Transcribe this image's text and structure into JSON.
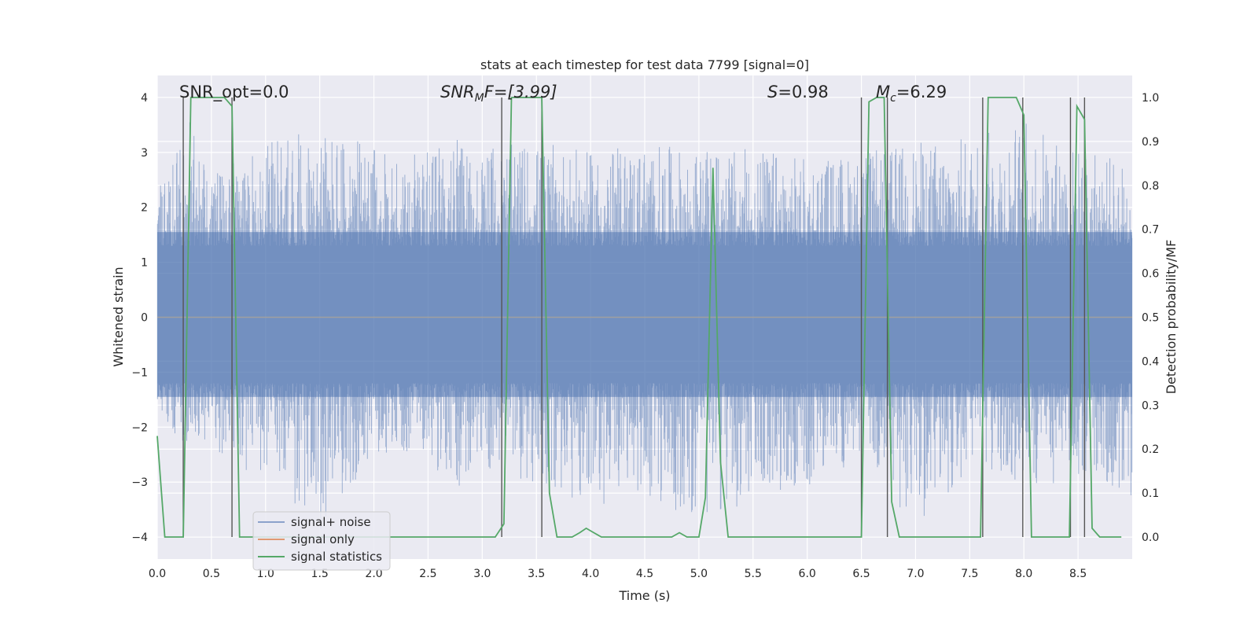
{
  "chart_data": {
    "type": "line",
    "title": "stats at each timestep for test data 7799 [signal=0]",
    "xlabel": "Time (s)",
    "ylabel": "Whitened strain",
    "y2label": "Detection probability/MF",
    "xlim": [
      0.0,
      9.0
    ],
    "ylim": [
      -4.4,
      4.4
    ],
    "y2lim": [
      -0.05,
      1.05
    ],
    "xticks": [
      0.0,
      0.5,
      1.0,
      1.5,
      2.0,
      2.5,
      3.0,
      3.5,
      4.0,
      4.5,
      5.0,
      5.5,
      6.0,
      6.5,
      7.0,
      7.5,
      8.0,
      8.5
    ],
    "xtick_labels": [
      "0.0",
      "0.5",
      "1.0",
      "1.5",
      "2.0",
      "2.5",
      "3.0",
      "3.5",
      "4.0",
      "4.5",
      "5.0",
      "5.5",
      "6.0",
      "6.5",
      "7.0",
      "7.5",
      "8.0",
      "8.5"
    ],
    "yticks": [
      -4,
      -3,
      -2,
      -1,
      0,
      1,
      2,
      3,
      4
    ],
    "ytick_labels": [
      "−4",
      "−3",
      "−2",
      "−1",
      "0",
      "1",
      "2",
      "3",
      "4"
    ],
    "y2ticks": [
      0.0,
      0.1,
      0.2,
      0.3,
      0.4,
      0.5,
      0.6,
      0.7,
      0.8,
      0.9,
      1.0
    ],
    "y2tick_labels": [
      "0.0",
      "0.1",
      "0.2",
      "0.3",
      "0.4",
      "0.5",
      "0.6",
      "0.7",
      "0.8",
      "0.9",
      "1.0"
    ],
    "annotations": {
      "snr_opt": "SNR_opt=0.0",
      "snr_mf_main": "SNR",
      "snr_mf_sub": "M",
      "snr_mf_rest": "F=[3.99]",
      "s_italic": "S",
      "s_value": "=0.98",
      "mc_main": "M",
      "mc_sub": "c",
      "mc_value": "=6.29"
    },
    "legend": {
      "placement": "lower-left",
      "entries": [
        "signal+ noise",
        "signal only",
        "signal statistics"
      ]
    },
    "series": [
      {
        "name": "signal+ noise",
        "color": "#4c72b0",
        "axis": "left",
        "style": "dense noise trace",
        "envelope": [
          {
            "x": 0.0,
            "low": -1.8,
            "high": 2.4
          },
          {
            "x": 0.25,
            "low": -2.3,
            "high": 3.8
          },
          {
            "x": 0.5,
            "low": -2.4,
            "high": 2.6
          },
          {
            "x": 1.0,
            "low": -3.0,
            "high": 3.2
          },
          {
            "x": 1.5,
            "low": -3.9,
            "high": 3.5
          },
          {
            "x": 2.0,
            "low": -2.5,
            "high": 3.1
          },
          {
            "x": 2.5,
            "low": -2.4,
            "high": 3.0
          },
          {
            "x": 2.7,
            "low": -3.4,
            "high": 3.3
          },
          {
            "x": 3.0,
            "low": -2.7,
            "high": 3.1
          },
          {
            "x": 3.5,
            "low": -3.1,
            "high": 3.2
          },
          {
            "x": 4.0,
            "low": -3.5,
            "high": 3.0
          },
          {
            "x": 4.5,
            "low": -3.3,
            "high": 3.2
          },
          {
            "x": 5.0,
            "low": -3.7,
            "high": 3.0
          },
          {
            "x": 5.5,
            "low": -3.4,
            "high": 3.1
          },
          {
            "x": 6.0,
            "low": -3.1,
            "high": 2.9
          },
          {
            "x": 6.5,
            "low": -2.6,
            "high": 3.0
          },
          {
            "x": 7.0,
            "low": -3.9,
            "high": 3.2
          },
          {
            "x": 7.5,
            "low": -2.8,
            "high": 3.3
          },
          {
            "x": 8.0,
            "low": -3.2,
            "high": 3.6
          },
          {
            "x": 8.5,
            "low": -2.9,
            "high": 3.1
          },
          {
            "x": 9.0,
            "low": -3.3,
            "high": 2.8
          }
        ]
      },
      {
        "name": "signal only",
        "color": "#dd8452",
        "axis": "left",
        "x": [
          0.0,
          9.0
        ],
        "y": [
          0.0,
          0.0
        ]
      },
      {
        "name": "signal statistics",
        "color": "#55a868",
        "axis": "right",
        "x": [
          0.0,
          0.07,
          0.24,
          0.31,
          0.62,
          0.69,
          0.76,
          0.83,
          3.12,
          3.2,
          3.27,
          3.55,
          3.62,
          3.69,
          3.76,
          3.83,
          3.9,
          3.96,
          4.03,
          4.1,
          4.17,
          4.75,
          4.82,
          4.89,
          5.0,
          5.06,
          5.13,
          5.2,
          5.27,
          6.5,
          6.57,
          6.64,
          6.71,
          6.78,
          6.85,
          7.6,
          7.67,
          7.74,
          7.93,
          8.0,
          8.07,
          8.14,
          8.42,
          8.49,
          8.56,
          8.63,
          8.7,
          8.9
        ],
        "y": [
          0.23,
          0.0,
          0.0,
          1.0,
          1.0,
          0.98,
          0.0,
          0.0,
          0.0,
          0.03,
          1.0,
          1.0,
          0.1,
          0.0,
          0.0,
          0.0,
          0.01,
          0.02,
          0.01,
          0.0,
          0.0,
          0.0,
          0.01,
          0.0,
          0.0,
          0.09,
          0.84,
          0.17,
          0.0,
          0.0,
          0.99,
          1.0,
          1.0,
          0.08,
          0.0,
          0.0,
          1.0,
          1.0,
          1.0,
          0.96,
          0.0,
          0.0,
          0.0,
          0.98,
          0.95,
          0.02,
          0.0,
          0.0
        ]
      }
    ],
    "vertical_markers": {
      "color": "#555555",
      "x": [
        0.24,
        0.69,
        3.18,
        3.55,
        6.5,
        6.74,
        7.62,
        7.99,
        8.43,
        8.56
      ]
    }
  },
  "colors": {
    "plot_bg": "#eaeaf2",
    "grid": "#ffffff",
    "text": "#262626",
    "noise": "#4c72b0",
    "signal_only": "#dd8452",
    "stats": "#55a868",
    "marker": "#555555"
  }
}
